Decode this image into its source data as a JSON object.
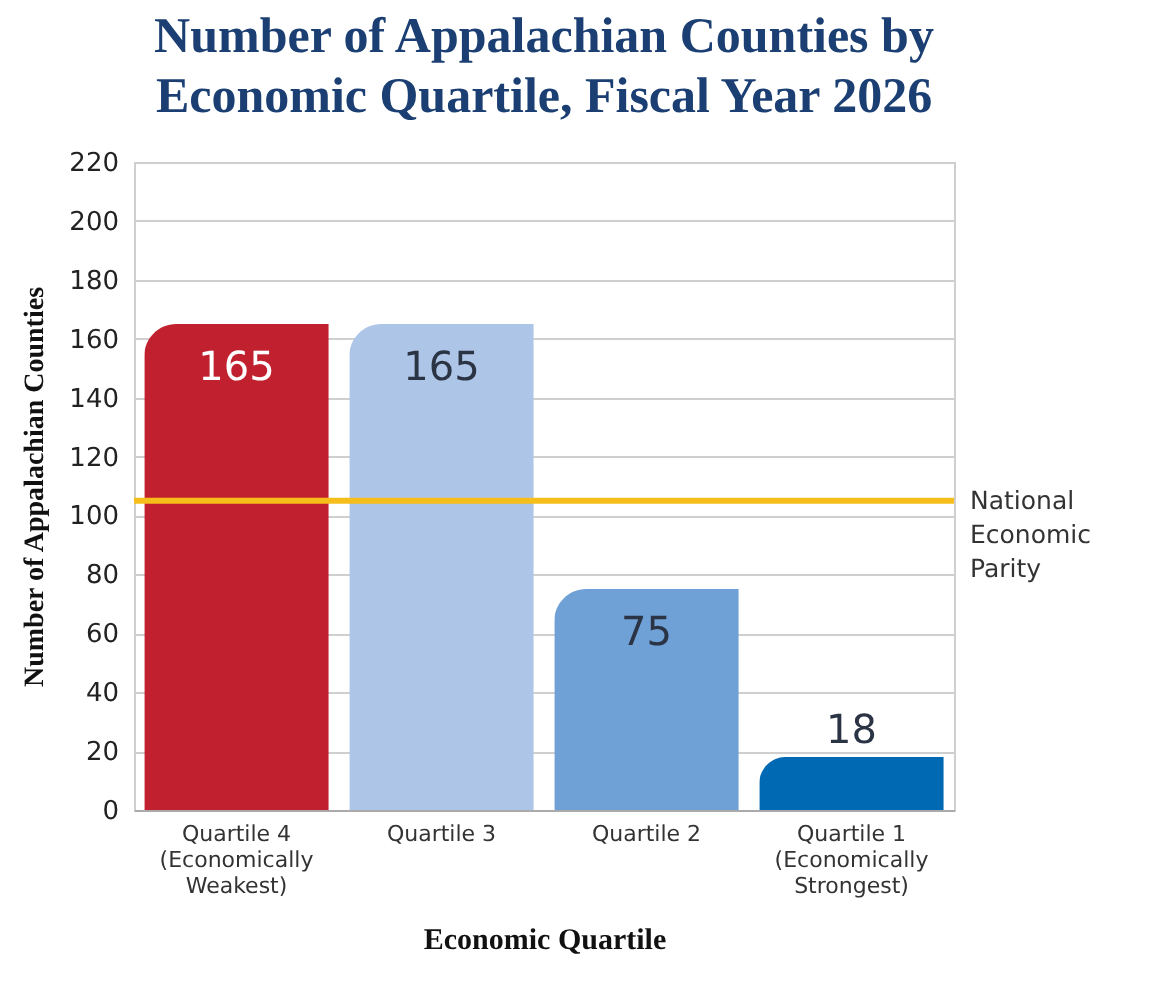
{
  "chart_data": {
    "type": "bar",
    "title": "Number of Appalachian Counties by Economic Quartile, Fiscal Year 2026",
    "xlabel": "Economic Quartile",
    "ylabel": "Number of Appalachian Counties",
    "categories": [
      "Quartile 4\n(Economically\nWeakest)",
      "Quartile 3",
      "Quartile 2",
      "Quartile 1\n(Economically\nStrongest)"
    ],
    "values": [
      165,
      165,
      75,
      18
    ],
    "colors": [
      "#c1202f",
      "#adc6e8",
      "#6fa0d6",
      "#0069b4"
    ],
    "ylim": [
      0,
      220
    ],
    "yticks": [
      0,
      20,
      40,
      60,
      80,
      100,
      120,
      140,
      160,
      180,
      200,
      220
    ],
    "grid": "y",
    "data_labels": true,
    "ref_lines": [
      {
        "axis": "y",
        "value": 105,
        "label": "National Economic Parity",
        "color": "#f6be1b"
      }
    ]
  }
}
